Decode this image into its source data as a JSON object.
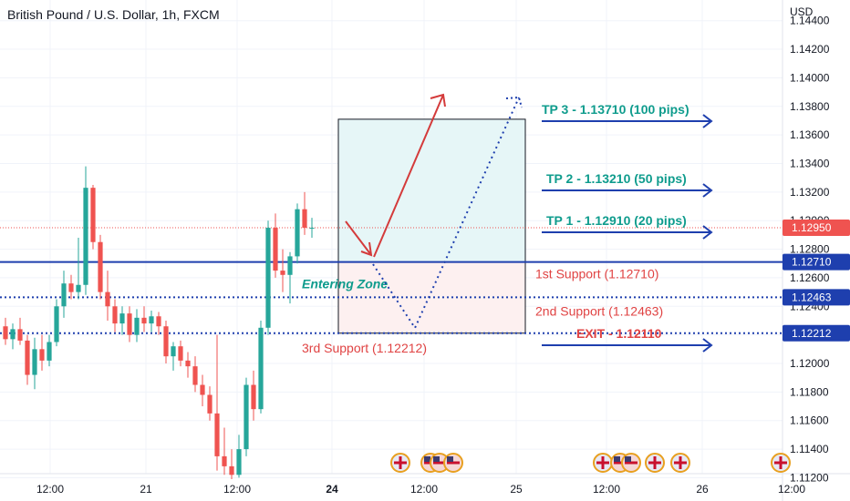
{
  "header": {
    "symbol_title": "British Pound / U.S. Dollar, 1h, FXCM",
    "currency": "USD"
  },
  "colors": {
    "bull": "#26a69a",
    "bear": "#ef5350",
    "blue": "#1e3fae",
    "teal": "#0f9c8d",
    "red": "#e04343",
    "grid": "#f0f3fa",
    "price_label_bg": "#ef5350"
  },
  "chart_data": {
    "type": "candlestick",
    "title": "British Pound / U.S. Dollar, 1h, FXCM",
    "y_unit": "USD",
    "ylim": [
      1.1119,
      1.1443
    ],
    "yticks": [
      "1.14400",
      "1.14200",
      "1.14000",
      "1.13800",
      "1.13600",
      "1.13400",
      "1.13200",
      "1.13000",
      "1.12800",
      "1.12600",
      "1.12400",
      "1.12200",
      "1.12000",
      "1.11800",
      "1.11600",
      "1.11400",
      "1.11200"
    ],
    "xticks": [
      "12:00",
      "21",
      "12:00",
      "24",
      "12:00",
      "25",
      "12:00",
      "26",
      "12:00"
    ],
    "last_price": "1.12950",
    "price_labels": [
      "1.12950",
      "1.12710",
      "1.12463",
      "1.12212"
    ],
    "horizontal_levels": [
      {
        "label": "1st Support (1.12710)",
        "price": 1.1271,
        "style": "solid"
      },
      {
        "label": "2nd Support (1.12463)",
        "price": 1.12463,
        "style": "dotted"
      },
      {
        "label": "3rd Support (1.12212)",
        "price": 1.12212,
        "style": "dotted"
      }
    ],
    "targets": [
      {
        "label": "TP 3 - 1.13710 (100 pips)",
        "price": 1.1371
      },
      {
        "label": "TP 2 - 1.13210 (50 pips)",
        "price": 1.1321
      },
      {
        "label": "TP 1 - 1.12910 (20 pips)",
        "price": 1.1291
      },
      {
        "label": "EXIT - 1.12110",
        "price": 1.1211
      }
    ],
    "zone_label": "Entering Zone",
    "candles": [
      {
        "o": 1.1226,
        "h": 1.1232,
        "l": 1.1213,
        "c": 1.1217
      },
      {
        "o": 1.1217,
        "h": 1.1228,
        "l": 1.121,
        "c": 1.1224
      },
      {
        "o": 1.1224,
        "h": 1.1232,
        "l": 1.1213,
        "c": 1.1216
      },
      {
        "o": 1.1216,
        "h": 1.122,
        "l": 1.1185,
        "c": 1.1192
      },
      {
        "o": 1.1192,
        "h": 1.1218,
        "l": 1.1182,
        "c": 1.121
      },
      {
        "o": 1.121,
        "h": 1.122,
        "l": 1.1195,
        "c": 1.1202
      },
      {
        "o": 1.1202,
        "h": 1.122,
        "l": 1.1198,
        "c": 1.1215
      },
      {
        "o": 1.1215,
        "h": 1.1245,
        "l": 1.1212,
        "c": 1.124
      },
      {
        "o": 1.124,
        "h": 1.1265,
        "l": 1.1232,
        "c": 1.1256
      },
      {
        "o": 1.1256,
        "h": 1.1262,
        "l": 1.1245,
        "c": 1.125
      },
      {
        "o": 1.125,
        "h": 1.1288,
        "l": 1.1245,
        "c": 1.1255
      },
      {
        "o": 1.1255,
        "h": 1.1338,
        "l": 1.1248,
        "c": 1.1323
      },
      {
        "o": 1.1323,
        "h": 1.1325,
        "l": 1.128,
        "c": 1.1285
      },
      {
        "o": 1.1285,
        "h": 1.129,
        "l": 1.1245,
        "c": 1.125
      },
      {
        "o": 1.125,
        "h": 1.1265,
        "l": 1.123,
        "c": 1.124
      },
      {
        "o": 1.124,
        "h": 1.1245,
        "l": 1.1222,
        "c": 1.1228
      },
      {
        "o": 1.1228,
        "h": 1.124,
        "l": 1.122,
        "c": 1.1235
      },
      {
        "o": 1.1235,
        "h": 1.124,
        "l": 1.1215,
        "c": 1.122
      },
      {
        "o": 1.122,
        "h": 1.1238,
        "l": 1.1215,
        "c": 1.1232
      },
      {
        "o": 1.1232,
        "h": 1.124,
        "l": 1.1222,
        "c": 1.1228
      },
      {
        "o": 1.1228,
        "h": 1.1237,
        "l": 1.1222,
        "c": 1.1233
      },
      {
        "o": 1.1233,
        "h": 1.1236,
        "l": 1.122,
        "c": 1.1226
      },
      {
        "o": 1.1226,
        "h": 1.123,
        "l": 1.12,
        "c": 1.1205
      },
      {
        "o": 1.1205,
        "h": 1.1215,
        "l": 1.1195,
        "c": 1.1212
      },
      {
        "o": 1.1212,
        "h": 1.1216,
        "l": 1.1198,
        "c": 1.1202
      },
      {
        "o": 1.1202,
        "h": 1.1208,
        "l": 1.119,
        "c": 1.1198
      },
      {
        "o": 1.1198,
        "h": 1.1205,
        "l": 1.118,
        "c": 1.1185
      },
      {
        "o": 1.1185,
        "h": 1.1192,
        "l": 1.117,
        "c": 1.1178
      },
      {
        "o": 1.1178,
        "h": 1.1184,
        "l": 1.116,
        "c": 1.1165
      },
      {
        "o": 1.1165,
        "h": 1.122,
        "l": 1.1125,
        "c": 1.1135
      },
      {
        "o": 1.1135,
        "h": 1.1155,
        "l": 1.1122,
        "c": 1.1128
      },
      {
        "o": 1.1128,
        "h": 1.114,
        "l": 1.1119,
        "c": 1.1122
      },
      {
        "o": 1.1122,
        "h": 1.115,
        "l": 1.112,
        "c": 1.114
      },
      {
        "o": 1.114,
        "h": 1.119,
        "l": 1.1135,
        "c": 1.1185
      },
      {
        "o": 1.1185,
        "h": 1.1195,
        "l": 1.116,
        "c": 1.1168
      },
      {
        "o": 1.1168,
        "h": 1.123,
        "l": 1.1165,
        "c": 1.1225
      },
      {
        "o": 1.1225,
        "h": 1.13,
        "l": 1.122,
        "c": 1.1295
      },
      {
        "o": 1.1295,
        "h": 1.1305,
        "l": 1.126,
        "c": 1.1265
      },
      {
        "o": 1.1265,
        "h": 1.128,
        "l": 1.125,
        "c": 1.1262
      },
      {
        "o": 1.1262,
        "h": 1.1278,
        "l": 1.1242,
        "c": 1.1275
      },
      {
        "o": 1.1275,
        "h": 1.1312,
        "l": 1.127,
        "c": 1.1308
      },
      {
        "o": 1.1308,
        "h": 1.132,
        "l": 1.129,
        "c": 1.1295
      },
      {
        "o": 1.1295,
        "h": 1.1302,
        "l": 1.1288,
        "c": 1.1295
      }
    ],
    "events": [
      {
        "icon": "uk-flag-icon",
        "count": 1
      },
      {
        "icon": "us-flag-icon",
        "count": 3
      },
      {
        "icon": "uk-flag-icon",
        "count": 1
      },
      {
        "icon": "us-flag-icon",
        "count": 3
      },
      {
        "icon": "uk-flag-icon",
        "count": 1
      },
      {
        "icon": "uk-flag-icon",
        "count": 1
      },
      {
        "icon": "uk-flag-icon",
        "count": 1
      }
    ]
  }
}
